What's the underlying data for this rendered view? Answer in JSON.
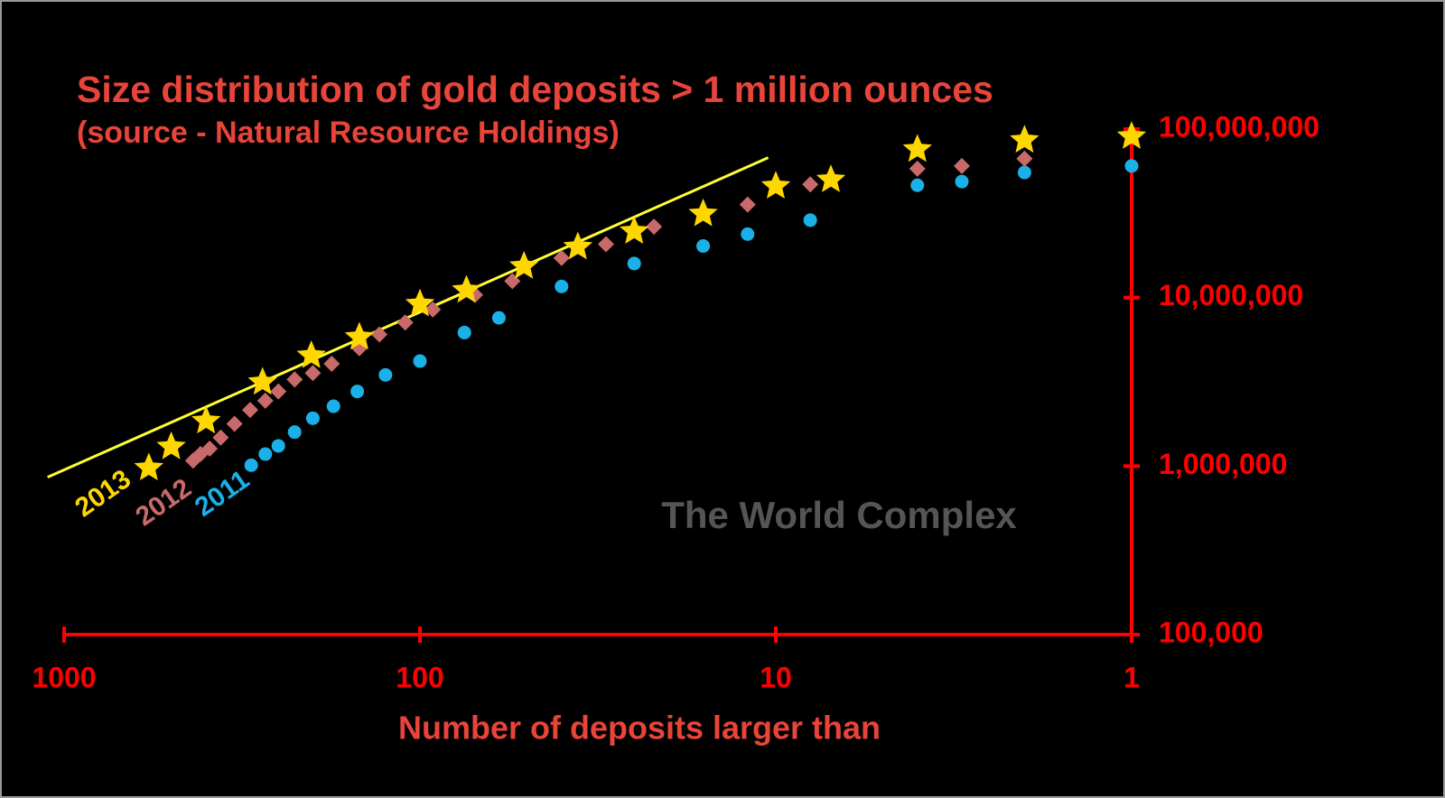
{
  "chart_data": {
    "type": "scatter",
    "title": "Size distribution of gold deposits > 1 million ounces",
    "subtitle": "(source - Natural Resource Holdings)",
    "x_label": "Number of deposits larger than",
    "watermark": "The World Complex",
    "xscale": "log",
    "yscale": "log",
    "xlim": [
      1000,
      1
    ],
    "ylim": [
      100000,
      100000000
    ],
    "xticks": [
      1000,
      100,
      10,
      1
    ],
    "yticks": [
      {
        "value": 100000,
        "label": "100,000"
      },
      {
        "value": 1000000,
        "label": "1,000,000"
      },
      {
        "value": 10000000,
        "label": "10,000,000"
      },
      {
        "value": 100000000,
        "label": "100,000,000"
      }
    ],
    "axis_color": "#ff0000",
    "series": [
      {
        "name": "2013",
        "color": "#ffd700",
        "marker": "star",
        "x": [
          578,
          500,
          399,
          277,
          202,
          148,
          100,
          74,
          51,
          36,
          25,
          16,
          10,
          7,
          4,
          2,
          1
        ],
        "values": [
          975000,
          1302000,
          1852000,
          3143000,
          4525000,
          5821000,
          9160000,
          11060000,
          15340000,
          19960000,
          24730000,
          31420000,
          45840000,
          50000000,
          75800000,
          85900000,
          90400000
        ]
      },
      {
        "name": "2012",
        "color": "#c96a6a",
        "marker": "diamond",
        "x": [
          434,
          414,
          390,
          363,
          332,
          300,
          272,
          250,
          225,
          200,
          177,
          148,
          130,
          110,
          92,
          70,
          55,
          40,
          30,
          22,
          12,
          8,
          4,
          3,
          2
        ],
        "values": [
          1078000,
          1178000,
          1270000,
          1477000,
          1783000,
          2155000,
          2443000,
          2772000,
          3265000,
          3565000,
          4045000,
          5006000,
          6043000,
          7118000,
          8492000,
          10380000,
          12540000,
          17180000,
          20750000,
          26360000,
          35650000,
          47000000,
          58200000,
          60400000,
          66800000
        ]
      },
      {
        "name": "2011",
        "color": "#1ab0e8",
        "marker": "circle",
        "x": [
          298,
          272,
          250,
          225,
          200,
          175,
          150,
          125,
          100,
          75,
          60,
          40,
          25,
          16,
          12,
          8,
          4,
          3,
          2,
          1
        ],
        "values": [
          1012000,
          1178000,
          1318000,
          1592000,
          1923000,
          2266000,
          2772000,
          3475000,
          4198000,
          6200000,
          7580000,
          11640000,
          15930000,
          20230000,
          23800000,
          28800000,
          46400000,
          48800000,
          55300000,
          60400000
        ]
      }
    ],
    "trend_line": {
      "color": "#ffff33",
      "x": [
        1113,
        10.5
      ],
      "values": [
        859000,
        67700000
      ]
    }
  }
}
